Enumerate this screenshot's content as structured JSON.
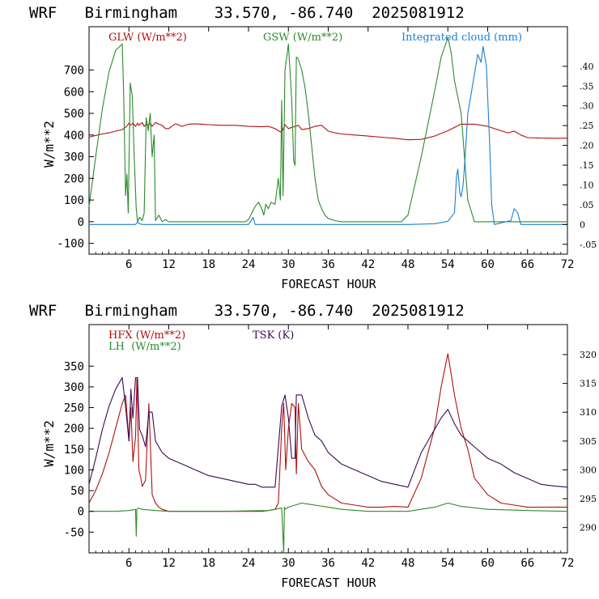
{
  "colors": {
    "glw": "#b01010",
    "gsw": "#2a8a2a",
    "cloud": "#1a7fd4",
    "hfx": "#b01010",
    "lh": "#2a8a2a",
    "tsk": "#3a0a55",
    "axis": "#000000"
  },
  "chart_data": [
    {
      "type": "line",
      "title": "WRF   Birmingham    33.570, -86.740  2025081912",
      "xlabel": "FORECAST HOUR",
      "ylabel": "W/m**2",
      "xlim": [
        0,
        72
      ],
      "ylim": [
        -150,
        900
      ],
      "y2lim": [
        -0.075,
        0.5
      ],
      "grid": false,
      "legend": "top",
      "x_ticks": [
        6,
        12,
        18,
        24,
        30,
        36,
        42,
        48,
        54,
        60,
        66,
        72
      ],
      "y_ticks": [
        -100,
        0,
        100,
        200,
        300,
        400,
        500,
        600,
        700
      ],
      "y2_ticks": [
        -0.05,
        0,
        0.05,
        0.1,
        0.15,
        0.2,
        0.25,
        0.3,
        0.35,
        0.4
      ],
      "y2_tick_labels": [
        "-.05",
        "0",
        ".05",
        ".10",
        ".15",
        ".20",
        ".25",
        ".30",
        ".35",
        ".40"
      ],
      "series": [
        {
          "name": "GLW (W/m**2)",
          "axis": "left",
          "x": [
            0,
            1,
            2,
            3,
            4,
            5,
            5.6,
            6,
            6.2,
            6.6,
            7,
            7.3,
            7.5,
            8,
            8.3,
            8.6,
            8.9,
            9.2,
            9.5,
            10,
            10.5,
            11,
            11.5,
            12,
            13,
            14,
            15,
            16,
            18,
            20,
            22,
            24,
            26,
            27,
            28,
            28.5,
            29,
            29.5,
            30,
            31,
            31.5,
            32,
            33,
            34,
            35,
            36,
            37,
            38,
            40,
            42,
            44,
            46,
            48,
            50,
            52,
            54,
            55,
            56,
            58,
            60,
            62,
            63,
            64,
            65,
            66,
            68,
            70,
            72
          ],
          "y": [
            390,
            398,
            405,
            410,
            418,
            425,
            438,
            455,
            445,
            455,
            440,
            455,
            445,
            458,
            440,
            450,
            445,
            455,
            440,
            458,
            450,
            445,
            430,
            430,
            452,
            440,
            450,
            452,
            448,
            445,
            445,
            440,
            438,
            440,
            430,
            420,
            412,
            448,
            430,
            440,
            445,
            425,
            430,
            440,
            445,
            418,
            410,
            405,
            400,
            395,
            390,
            385,
            378,
            380,
            395,
            420,
            435,
            450,
            450,
            440,
            420,
            410,
            418,
            400,
            388,
            386,
            385,
            385
          ]
        },
        {
          "name": "GSW (W/m**2)",
          "axis": "left",
          "x": [
            0,
            1,
            2,
            3,
            4,
            5,
            5.2,
            5.5,
            5.7,
            5.9,
            6.2,
            6.5,
            6.8,
            7.1,
            7.3,
            7.6,
            8,
            8.3,
            8.6,
            8.9,
            9.2,
            9.5,
            9.8,
            10,
            10.5,
            11,
            11.5,
            12,
            23.5,
            24,
            24.5,
            25,
            25.5,
            26,
            26.3,
            26.6,
            27,
            27.4,
            28,
            28.5,
            28.8,
            29,
            29.2,
            29.5,
            30,
            30.5,
            30.8,
            31,
            31.2,
            31.5,
            32,
            32.5,
            33,
            33.5,
            34,
            34.5,
            35,
            35.5,
            36,
            37,
            38,
            47,
            48,
            50,
            52,
            53,
            54,
            54.5,
            55,
            56,
            57,
            58,
            72
          ],
          "y": [
            70,
            300,
            520,
            690,
            790,
            820,
            600,
            120,
            220,
            40,
            640,
            580,
            300,
            60,
            0,
            20,
            5,
            40,
            480,
            420,
            500,
            300,
            400,
            5,
            30,
            0,
            10,
            0,
            0,
            10,
            40,
            70,
            90,
            60,
            30,
            80,
            60,
            90,
            80,
            200,
            100,
            560,
            120,
            700,
            820,
            560,
            280,
            260,
            760,
            750,
            700,
            620,
            500,
            350,
            200,
            100,
            60,
            30,
            15,
            5,
            0,
            0,
            30,
            300,
            600,
            760,
            850,
            780,
            650,
            500,
            100,
            0,
            0
          ]
        },
        {
          "name": "Integrated cloud (mm)",
          "axis": "right",
          "x": [
            0,
            7,
            7.3,
            7.6,
            8,
            24,
            24.5,
            24.7,
            25,
            48,
            52,
            54,
            55,
            55.3,
            55.5,
            55.8,
            56,
            56.3,
            56.6,
            57,
            57.5,
            58,
            58.5,
            59,
            59.3,
            59.8,
            60.3,
            60.6,
            61,
            63.5,
            64,
            64.5,
            65,
            72
          ],
          "y": [
            0,
            0,
            0.006,
            0.002,
            0,
            0,
            0.012,
            0.018,
            0,
            0,
            0.002,
            0.008,
            0.03,
            0.12,
            0.14,
            0.08,
            0.07,
            0.1,
            0.17,
            0.28,
            0.33,
            0.38,
            0.43,
            0.41,
            0.45,
            0.4,
            0.2,
            0.05,
            0,
            0.01,
            0.04,
            0.03,
            0,
            0
          ]
        }
      ]
    },
    {
      "type": "line",
      "title": "WRF   Birmingham    33.570, -86.740  2025081912",
      "xlabel": "FORECAST HOUR",
      "ylabel": "W/m**2",
      "xlim": [
        0,
        72
      ],
      "ylim": [
        -100,
        450
      ],
      "y2lim": [
        285.6,
        325.2
      ],
      "grid": false,
      "legend": "top",
      "x_ticks": [
        6,
        12,
        18,
        24,
        30,
        36,
        42,
        48,
        54,
        60,
        66,
        72
      ],
      "y_ticks": [
        -50,
        0,
        50,
        100,
        150,
        200,
        250,
        300,
        350
      ],
      "y2_ticks": [
        290,
        295,
        300,
        305,
        310,
        315,
        320
      ],
      "series": [
        {
          "name": "HFX (W/m**2)",
          "axis": "left",
          "x": [
            0,
            1,
            2,
            3,
            4,
            5,
            5.5,
            6,
            6.3,
            6.6,
            7,
            7.2,
            7.5,
            7.8,
            8,
            8.5,
            9,
            9.5,
            10,
            10.5,
            11,
            12,
            14,
            16,
            18,
            20,
            24,
            26,
            27,
            28,
            28.5,
            29,
            29.3,
            29.6,
            30,
            30.5,
            31,
            31.2,
            31.5,
            32,
            33,
            34,
            35,
            36,
            37,
            38,
            40,
            42,
            44,
            46,
            48,
            50,
            52,
            53,
            54,
            55,
            56,
            57,
            58,
            60,
            62,
            64,
            66,
            68,
            70,
            72
          ],
          "y": [
            20,
            50,
            90,
            140,
            200,
            260,
            280,
            170,
            250,
            120,
            180,
            320,
            100,
            80,
            60,
            75,
            260,
            40,
            20,
            10,
            5,
            0,
            0,
            0,
            0,
            0,
            0,
            0,
            2,
            5,
            20,
            200,
            260,
            100,
            200,
            260,
            250,
            90,
            260,
            150,
            120,
            100,
            60,
            40,
            30,
            20,
            15,
            10,
            10,
            12,
            10,
            80,
            200,
            300,
            380,
            280,
            200,
            150,
            80,
            40,
            20,
            15,
            10,
            10,
            10,
            10
          ]
        },
        {
          "name": "LH  (W/m**2)",
          "axis": "left",
          "x": [
            0,
            4,
            6,
            7,
            7.1,
            7.2,
            7.4,
            8,
            10,
            12,
            20,
            27,
            28,
            29,
            29.3,
            29.4,
            29.5,
            29.8,
            30,
            31,
            32,
            34,
            36,
            38,
            42,
            48,
            52,
            54,
            56,
            60,
            66,
            72
          ],
          "y": [
            0,
            0,
            2,
            5,
            -60,
            5,
            8,
            5,
            2,
            0,
            0,
            2,
            5,
            8,
            -100,
            10,
            5,
            8,
            10,
            15,
            20,
            15,
            10,
            5,
            0,
            0,
            10,
            20,
            12,
            5,
            2,
            0
          ]
        },
        {
          "name": "TSK (K)",
          "axis": "right",
          "x": [
            0,
            1,
            2,
            3,
            4,
            5,
            5.5,
            6,
            6.3,
            6.6,
            7,
            7.3,
            7.6,
            8,
            8.5,
            9,
            9.5,
            10,
            11,
            12,
            14,
            16,
            18,
            20,
            22,
            24,
            25,
            26,
            27,
            28,
            29,
            29.5,
            30,
            30.5,
            31,
            31.2,
            31.5,
            32,
            33,
            34,
            35,
            36,
            38,
            40,
            42,
            44,
            46,
            48,
            50,
            52,
            53,
            54,
            55,
            56,
            57,
            58,
            60,
            62,
            64,
            66,
            68,
            70,
            72
          ],
          "y": [
            297.5,
            302,
            307,
            311,
            314,
            316,
            311,
            305,
            314,
            309,
            316,
            316,
            307,
            306,
            304,
            310,
            310,
            305,
            303,
            302,
            301,
            300,
            299,
            298.5,
            298,
            297.5,
            297.5,
            297,
            297,
            297,
            311,
            313,
            309,
            302,
            302,
            313,
            313,
            313,
            309,
            306,
            305,
            303,
            301,
            300,
            299,
            298,
            297.5,
            297,
            303,
            307,
            309,
            310.5,
            308,
            306,
            305,
            304,
            302,
            301,
            299.5,
            298.5,
            297.5,
            297.2,
            297
          ]
        }
      ]
    }
  ]
}
